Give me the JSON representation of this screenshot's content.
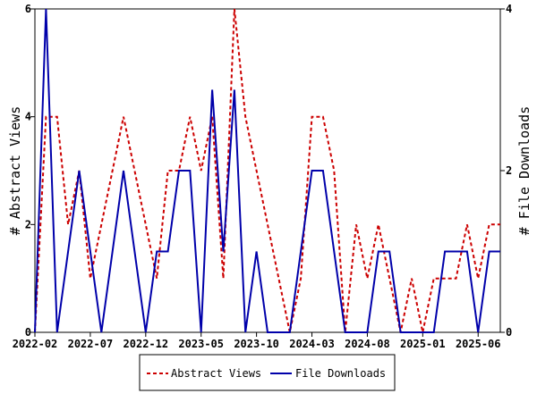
{
  "chart_data": {
    "type": "line",
    "title": "",
    "xlabel": "",
    "ylabel_left": "# Abstract Views",
    "ylabel_right": "# File Downloads",
    "x": [
      "2022-02",
      "2022-03",
      "2022-04",
      "2022-05",
      "2022-06",
      "2022-07",
      "2022-08",
      "2022-09",
      "2022-10",
      "2022-11",
      "2022-12",
      "2023-01",
      "2023-02",
      "2023-03",
      "2023-04",
      "2023-05",
      "2023-06",
      "2023-07",
      "2023-08",
      "2023-09",
      "2023-10",
      "2023-11",
      "2023-12",
      "2024-01",
      "2024-02",
      "2024-03",
      "2024-04",
      "2024-05",
      "2024-06",
      "2024-07",
      "2024-08",
      "2024-09",
      "2024-10",
      "2024-11",
      "2024-12",
      "2025-01",
      "2025-02",
      "2025-03",
      "2025-04",
      "2025-05",
      "2025-06",
      "2025-07",
      "2025-08"
    ],
    "x_ticks": [
      "2022-02",
      "2022-07",
      "2022-12",
      "2023-05",
      "2023-10",
      "2024-03",
      "2024-08",
      "2025-01",
      "2025-06"
    ],
    "ylim_left": [
      0,
      6
    ],
    "yticks_left": [
      0,
      2,
      4,
      6
    ],
    "ylim_right": [
      0,
      4
    ],
    "yticks_right": [
      0,
      2,
      4
    ],
    "grid": false,
    "legend_position": "bottom",
    "series": [
      {
        "name": "Abstract Views",
        "axis": "left",
        "style": "dashed",
        "color": "#cc0000",
        "values": [
          0,
          4,
          4,
          2,
          3,
          1,
          2,
          3,
          4,
          3,
          2,
          1,
          3,
          3,
          4,
          3,
          4,
          1,
          6,
          4,
          3,
          2,
          1,
          0,
          1,
          4,
          4,
          3,
          0,
          2,
          1,
          2,
          1,
          0,
          1,
          0,
          1,
          1,
          1,
          2,
          1,
          2,
          2
        ]
      },
      {
        "name": "File Downloads",
        "axis": "right",
        "style": "solid",
        "color": "#0000aa",
        "values": [
          0,
          4,
          0,
          1,
          2,
          1,
          0,
          1,
          2,
          1,
          0,
          1,
          1,
          2,
          2,
          0,
          3,
          1,
          3,
          0,
          1,
          0,
          0,
          0,
          1,
          2,
          2,
          1,
          0,
          0,
          0,
          1,
          1,
          0,
          0,
          0,
          0,
          1,
          1,
          1,
          0,
          1,
          1
        ]
      }
    ]
  }
}
